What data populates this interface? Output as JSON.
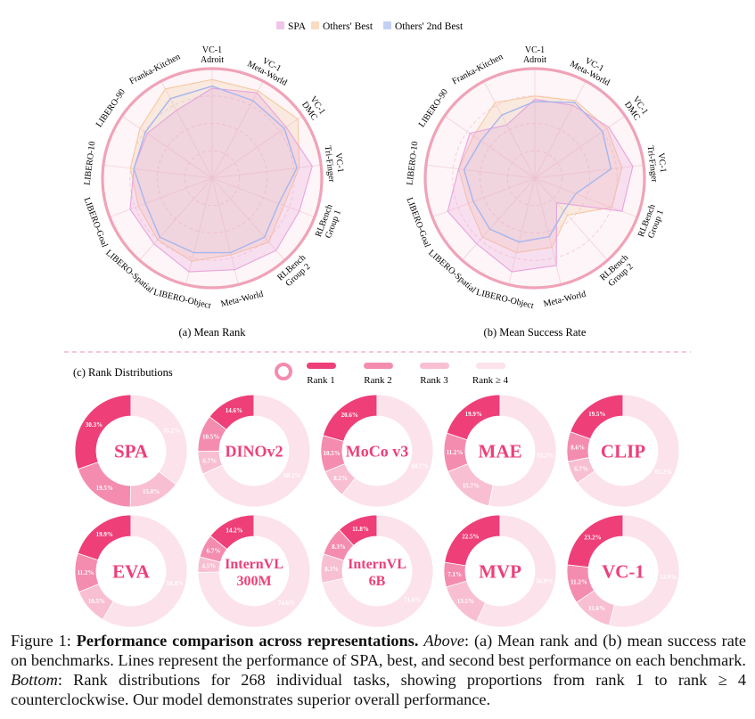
{
  "legend": {
    "spa": "SPA",
    "best": "Others' Best",
    "second": "Others' 2nd Best"
  },
  "colors": {
    "spa": "#e8a4dc",
    "best": "#f6c9a2",
    "second": "#a6b6ee",
    "rim": "#f0a3b8",
    "rank1": "#ee3f78",
    "rank2": "#f48cb0",
    "rank3": "#f8bfd2",
    "rank4": "#fce2ea",
    "donut_label": "#ee3f78",
    "divider": "#f2a6c1"
  },
  "chart_data": [
    {
      "type": "radar",
      "title": "(a) Mean Rank",
      "axes": [
        "VC-1 Adroit",
        "VC-1 Meta-World",
        "VC-1 DMC",
        "VC-1 Tri-Finger",
        "RLBench Group 1",
        "RLBench Group 2",
        "Meta-World",
        "LIBERO-Object",
        "LIBERO-Spatial",
        "LIBERO-Goal",
        "LIBERO-10",
        "LIBERO-90",
        "Franka-Kitchen"
      ],
      "axis_labels": [
        [
          "VC-1",
          "Adroit"
        ],
        [
          "VC-1",
          "Meta-World"
        ],
        [
          "VC-1",
          "DMC"
        ],
        [
          "VC-1",
          "Tri-Finger"
        ],
        [
          "RLBench",
          "Group 1"
        ],
        [
          "RLBench",
          "Group 2"
        ],
        [
          "Meta-World"
        ],
        [
          "LIBERO-Object"
        ],
        [
          "LIBERO-Spatial"
        ],
        [
          "LIBERO-Goal"
        ],
        [
          "LIBERO-10"
        ],
        [
          "LIBERO-90"
        ],
        [
          "Franka-Kitchen"
        ]
      ],
      "range": [
        0,
        1
      ],
      "series": [
        {
          "name": "SPA",
          "values": [
            0.82,
            0.88,
            0.82,
            0.92,
            0.85,
            0.88,
            0.86,
            0.88,
            0.8,
            0.8,
            0.72,
            0.72,
            0.7
          ]
        },
        {
          "name": "Others' Best",
          "values": [
            0.9,
            0.9,
            0.95,
            0.8,
            0.7,
            0.78,
            0.72,
            0.78,
            0.75,
            0.72,
            0.75,
            0.8,
            0.92
          ]
        },
        {
          "name": "Others' 2nd Best",
          "values": [
            0.84,
            0.8,
            0.8,
            0.78,
            0.65,
            0.72,
            0.7,
            0.7,
            0.72,
            0.65,
            0.72,
            0.74,
            0.82
          ]
        }
      ]
    },
    {
      "type": "radar",
      "title": "(b) Mean Success Rate",
      "axes": [
        "VC-1 Adroit",
        "VC-1 Meta-World",
        "VC-1 DMC",
        "VC-1 Tri-Finger",
        "RLBench Group 1",
        "RLBench Group 2",
        "Meta-World",
        "LIBERO-Object",
        "LIBERO-Spatial",
        "LIBERO-Goal",
        "LIBERO-10",
        "LIBERO-90",
        "Franka-Kitchen"
      ],
      "axis_labels": [
        [
          "VC-1",
          "Adroit"
        ],
        [
          "VC-1",
          "Meta-World"
        ],
        [
          "VC-1",
          "DMC"
        ],
        [
          "VC-1",
          "Tri-Finger"
        ],
        [
          "RLBench",
          "Group 1"
        ],
        [
          "RLBench",
          "Group 2"
        ],
        [
          "Meta-World"
        ],
        [
          "LIBERO-Object"
        ],
        [
          "LIBERO-Spatial"
        ],
        [
          "LIBERO-Goal"
        ],
        [
          "LIBERO-10"
        ],
        [
          "LIBERO-90"
        ],
        [
          "Franka-Kitchen"
        ]
      ],
      "range": [
        0,
        1
      ],
      "series": [
        {
          "name": "SPA",
          "values": [
            0.72,
            0.75,
            0.82,
            0.9,
            0.85,
            0.3,
            0.82,
            0.88,
            0.8,
            0.85,
            0.7,
            0.72,
            0.55
          ]
        },
        {
          "name": "Others' Best",
          "values": [
            0.75,
            0.8,
            0.8,
            0.8,
            0.75,
            0.45,
            0.65,
            0.7,
            0.72,
            0.65,
            0.7,
            0.68,
            0.78
          ]
        },
        {
          "name": "Others' 2nd Best",
          "values": [
            0.7,
            0.78,
            0.75,
            0.7,
            0.4,
            0.4,
            0.55,
            0.6,
            0.62,
            0.6,
            0.65,
            0.6,
            0.65
          ]
        }
      ]
    },
    {
      "type": "donut",
      "title": "(c) Rank Distributions",
      "legend": [
        "Rank 1",
        "Rank 2",
        "Rank 3",
        "Rank ≥ 4"
      ],
      "models": [
        {
          "name": [
            "SPA"
          ],
          "values": [
            30.3,
            19.5,
            15.0,
            35.2
          ],
          "labels": [
            "30.3%",
            "19.5%",
            "15.0%",
            "35.2%"
          ]
        },
        {
          "name": [
            "DINOv2"
          ],
          "values": [
            14.6,
            10.5,
            6.7,
            68.2
          ],
          "labels": [
            "14.6%",
            "10.5%",
            "6.7%",
            "68.2%"
          ]
        },
        {
          "name": [
            "MoCo v3"
          ],
          "values": [
            20.6,
            10.5,
            8.2,
            60.7
          ],
          "labels": [
            "20.6%",
            "10.5%",
            "8.2%",
            "60.7%"
          ]
        },
        {
          "name": [
            "MAE"
          ],
          "values": [
            19.9,
            11.2,
            15.7,
            53.2
          ],
          "labels": [
            "19.9%",
            "11.2%",
            "15.7%",
            "53.2%"
          ]
        },
        {
          "name": [
            "CLIP"
          ],
          "values": [
            19.5,
            8.6,
            6.7,
            65.2
          ],
          "labels": [
            "19.5%",
            "8.6%",
            "6.7%",
            "65.2%"
          ]
        },
        {
          "name": [
            "EVA"
          ],
          "values": [
            19.9,
            11.2,
            10.5,
            58.4
          ],
          "labels": [
            "19.9%",
            "11.2%",
            "10.5%",
            "58.4%"
          ]
        },
        {
          "name": [
            "InternVL",
            "300M"
          ],
          "values": [
            14.2,
            6.7,
            4.5,
            74.6
          ],
          "labels": [
            "14.2%",
            "6.7%",
            "4.5%",
            "74.6%"
          ]
        },
        {
          "name": [
            "InternVL",
            "6B"
          ],
          "values": [
            11.8,
            8.3,
            8.3,
            71.6
          ],
          "labels": [
            "11.8%",
            "8.3%",
            "8.3%",
            "71.6%"
          ]
        },
        {
          "name": [
            "MVP"
          ],
          "values": [
            22.5,
            7.1,
            13.5,
            56.9
          ],
          "labels": [
            "22.5%",
            "7.1%",
            "13.5%",
            "56.9%"
          ]
        },
        {
          "name": [
            "VC-1"
          ],
          "values": [
            23.2,
            11.2,
            11.6,
            53.9
          ],
          "labels": [
            "23.2%",
            "11.2%",
            "11.6%",
            "53.9%"
          ]
        }
      ]
    }
  ],
  "caption": {
    "prefix": "Figure 1: ",
    "bold": "Performance comparison across representations.",
    "above_label": "Above",
    "text1": ": (a) Mean rank and (b) mean success rate on benchmarks. Lines represent the performance of SPA, best, and second best performance on each benchmark. ",
    "bottom_label": "Bottom",
    "text2": ": Rank distributions for 268 individual tasks, showing proportions from rank 1 to rank ≥ 4 counterclockwise. Our model demonstrates superior overall performance."
  }
}
